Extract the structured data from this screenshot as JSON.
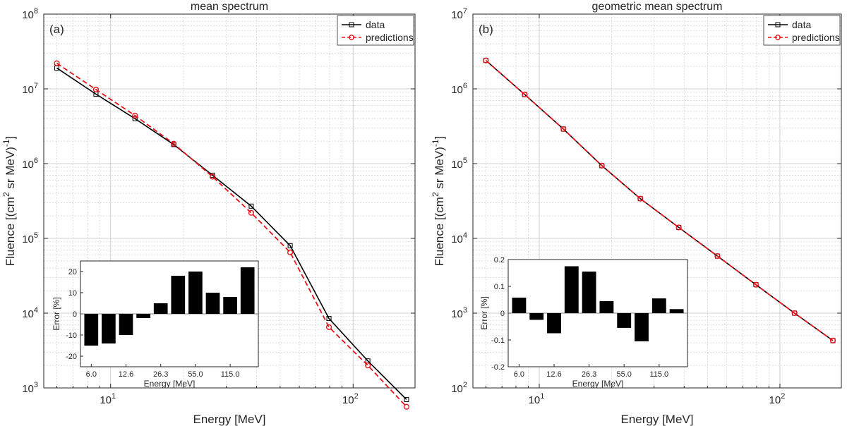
{
  "chart_data": [
    {
      "id": "a",
      "type": "line",
      "title": "mean spectrum",
      "panel_label": "(a)",
      "xlabel": "Energy [MeV]",
      "ylabel": "Fluence [(cm2 sr MeV)-1]",
      "xscale": "log",
      "yscale": "log",
      "xlim": [
        5.3,
        180
      ],
      "ylim": [
        1000,
        100000000
      ],
      "grid": true,
      "legend_position": "top-right",
      "x_tick_labels": [
        "10^1",
        "10^2"
      ],
      "y_tick_labels": [
        "10^3",
        "10^4",
        "10^5",
        "10^6",
        "10^7",
        "10^8"
      ],
      "x": [
        6.0,
        8.7,
        12.6,
        18.2,
        26.3,
        38.0,
        55.0,
        79.5,
        115.0,
        166.0
      ],
      "series": [
        {
          "name": "data",
          "color": "#000000",
          "marker": "square",
          "line": "solid",
          "values": [
            19000000,
            8500000,
            4000000,
            1800000,
            700000,
            270000,
            80000,
            8500,
            2300,
            700
          ]
        },
        {
          "name": "predictions",
          "color": "#e8141b",
          "marker": "circle",
          "line": "dashed",
          "values": [
            22000000,
            9800000,
            4400000,
            1850000,
            670000,
            220000,
            65000,
            6500,
            2000,
            560
          ]
        }
      ],
      "inset": {
        "type": "bar",
        "xlabel": "Energy [MeV]",
        "ylabel": "Error [%]",
        "ylim": [
          -25,
          25
        ],
        "yticks": [
          -20,
          -10,
          0,
          10,
          20
        ],
        "tick_labels": [
          "6.0",
          "12.6",
          "26.3",
          "55.0",
          "115.0"
        ],
        "categories": [
          "6.0",
          "8.7",
          "12.6",
          "18.2",
          "26.3",
          "38.0",
          "55.0",
          "79.5",
          "115.0",
          "166.0"
        ],
        "values": [
          -15,
          -14,
          -10,
          -2,
          5,
          18,
          20,
          10,
          8,
          22
        ]
      }
    },
    {
      "id": "b",
      "type": "line",
      "title": "geometric mean spectrum",
      "panel_label": "(b)",
      "xlabel": "Energy [MeV]",
      "ylabel": "Fluence [(cm2 sr MeV)-1]",
      "xscale": "log",
      "yscale": "log",
      "xlim": [
        5.3,
        180
      ],
      "ylim": [
        100,
        10000000
      ],
      "grid": true,
      "legend_position": "top-right",
      "x_tick_labels": [
        "10^1",
        "10^2"
      ],
      "y_tick_labels": [
        "10^2",
        "10^3",
        "10^4",
        "10^5",
        "10^6",
        "10^7"
      ],
      "x": [
        6.0,
        8.7,
        12.6,
        18.2,
        26.3,
        38.0,
        55.0,
        79.5,
        115.0,
        166.0
      ],
      "series": [
        {
          "name": "data",
          "color": "#000000",
          "marker": "square",
          "line": "solid",
          "values": [
            2400000,
            840000,
            290000,
            94000,
            34000,
            14000,
            5800,
            2400,
            1000,
            430
          ]
        },
        {
          "name": "predictions",
          "color": "#e8141b",
          "marker": "circle",
          "line": "dashed",
          "values": [
            2400000,
            840000,
            290000,
            94000,
            34000,
            14000,
            5800,
            2400,
            1000,
            430
          ]
        }
      ],
      "inset": {
        "type": "bar",
        "xlabel": "Energy [MeV]",
        "ylabel": "Error [%]",
        "ylim": [
          -0.2,
          0.2
        ],
        "yticks": [
          -0.2,
          -0.1,
          0,
          0.1,
          0.2
        ],
        "tick_labels": [
          "6.0",
          "12.6",
          "26.3",
          "55.0",
          "115.0"
        ],
        "categories": [
          "6.0",
          "8.7",
          "12.6",
          "18.2",
          "26.3",
          "38.0",
          "55.0",
          "79.5",
          "115.0",
          "166.0"
        ],
        "values": [
          0.058,
          -0.025,
          -0.075,
          0.175,
          0.155,
          0.045,
          -0.055,
          -0.105,
          0.055,
          0.015
        ]
      }
    }
  ]
}
